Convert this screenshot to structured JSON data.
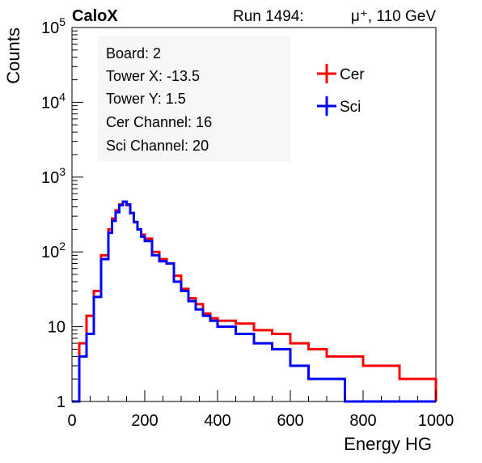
{
  "header": {
    "experiment": "CaloX",
    "run_label": "Run 1494:",
    "particle": "μ⁺, 110 GeV"
  },
  "info_box": {
    "lines": [
      "Board: 2",
      "Tower X: -13.5",
      "Tower Y: 1.5",
      "Cer Channel: 16",
      "Sci Channel: 20"
    ]
  },
  "colors": {
    "cer": "#ff0000",
    "sci": "#0000ff",
    "axis": "#000000"
  },
  "chart_data": {
    "type": "line",
    "title": "",
    "xlabel": "Energy HG",
    "ylabel": "Counts",
    "xlim": [
      0,
      1000
    ],
    "ylim": [
      1,
      100000
    ],
    "y_scale": "log",
    "grid": false,
    "legend_position": "top-right",
    "x_ticks": [
      "0",
      "200",
      "400",
      "600",
      "800",
      "1000"
    ],
    "y_ticks": [
      "1",
      "10",
      "10^2",
      "10^3",
      "10^4",
      "10^5"
    ],
    "x": [
      0,
      20,
      40,
      60,
      80,
      100,
      110,
      120,
      130,
      140,
      150,
      160,
      170,
      180,
      190,
      200,
      220,
      240,
      260,
      280,
      300,
      320,
      340,
      360,
      380,
      400,
      450,
      500,
      550,
      600,
      650,
      700,
      750,
      800,
      850,
      900,
      950,
      1000
    ],
    "series": [
      {
        "name": "Cer",
        "color": "#ff0000",
        "values": [
          1,
          6,
          14,
          30,
          90,
          200,
          280,
          360,
          430,
          470,
          420,
          330,
          250,
          200,
          170,
          150,
          100,
          80,
          70,
          48,
          32,
          24,
          20,
          15,
          13,
          12,
          11,
          9,
          8,
          6,
          5,
          4,
          4,
          3,
          3,
          2,
          2,
          1
        ]
      },
      {
        "name": "Sci",
        "color": "#0000ff",
        "values": [
          1,
          4,
          8,
          25,
          80,
          180,
          260,
          340,
          420,
          470,
          430,
          330,
          250,
          200,
          160,
          140,
          90,
          75,
          70,
          40,
          30,
          22,
          17,
          14,
          12,
          10,
          8,
          6,
          5,
          3,
          2,
          2,
          1,
          1,
          1,
          1,
          1,
          1
        ]
      }
    ]
  }
}
